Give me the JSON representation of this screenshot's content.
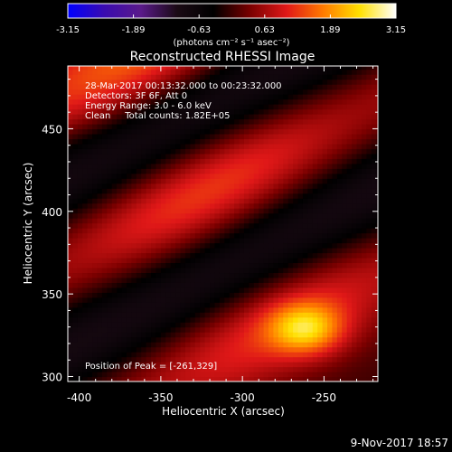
{
  "chart_data": {
    "type": "heatmap",
    "title": "Reconstructed RHESSI Image",
    "xlabel": "Heliocentric X (arcsec)",
    "ylabel": "Heliocentric Y (arcsec)",
    "xlim": [
      -407,
      -217
    ],
    "ylim": [
      297,
      488
    ],
    "x_ticks": [
      -400,
      -350,
      -300,
      -250
    ],
    "x_tick_labels": [
      "-400",
      "-350",
      "-300",
      "-250"
    ],
    "y_ticks": [
      300,
      350,
      400,
      450
    ],
    "y_tick_labels": [
      "300",
      "350",
      "400",
      "450"
    ],
    "colorbar": {
      "range": [
        -3.15,
        3.15
      ],
      "ticks": [
        -3.15,
        -1.89,
        -0.63,
        0.63,
        1.89,
        3.15
      ],
      "tick_labels": [
        "-3.15",
        "-1.89",
        "-0.63",
        "0.63",
        "1.89",
        "3.15"
      ],
      "unit_label": "(photons cm⁻² s⁻¹ asec⁻²)",
      "colors": [
        "#0000ff",
        "#3a0bb0",
        "#5a1a8a",
        "#1a0a14",
        "#000000",
        "#7a0000",
        "#e01818",
        "#ff7a00",
        "#ffe000",
        "#ffffff"
      ]
    },
    "peak": {
      "x": -261,
      "y": 329,
      "value": 3.15
    },
    "annotations": [
      "28-Mar-2017 00:13:32.000 to 00:23:32.000",
      "Detectors: 3F 6F, Att 0",
      "Energy Range: 3.0 - 6.0 keV",
      "Clean     Total counts: 1.82E+05",
      "Position of Peak = [-261,329]"
    ],
    "fringe_pattern": {
      "orientation_deg": 27,
      "period_arcsec": 94,
      "ridges": [
        {
          "offset_arcsec": -70,
          "value": 1.2
        },
        {
          "offset_arcsec": -24,
          "value": -1.0
        },
        {
          "offset_arcsec": 22,
          "value": 1.4
        },
        {
          "offset_arcsec": 68,
          "value": -1.0
        },
        {
          "offset_arcsec": 114,
          "value": 1.6
        }
      ]
    },
    "grid": false
  },
  "footer": {
    "timestamp": "9-Nov-2017 18:57"
  }
}
